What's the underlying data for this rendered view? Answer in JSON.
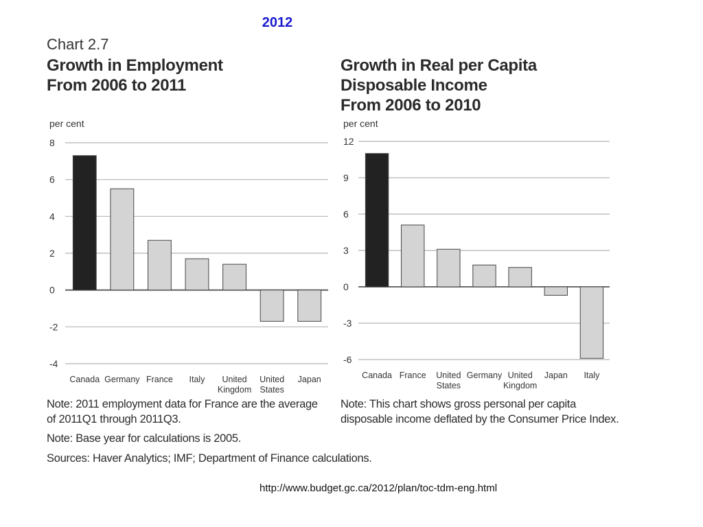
{
  "header": {
    "year": "2012",
    "chart_label": "Chart 2.7"
  },
  "chart_data": [
    {
      "type": "bar",
      "title_lines": [
        "Growth in Employment",
        "From 2006 to 2011"
      ],
      "ylabel": "per cent",
      "ylim": [
        -4,
        8
      ],
      "yticks": [
        8,
        6,
        4,
        2,
        0,
        -2,
        -4
      ],
      "categories": [
        "Canada",
        "Germany",
        "France",
        "Italy",
        "United Kingdom",
        "United States",
        "Japan"
      ],
      "category_lines": [
        [
          "Canada"
        ],
        [
          "Germany"
        ],
        [
          "France"
        ],
        [
          "Italy"
        ],
        [
          "United",
          "Kingdom"
        ],
        [
          "United",
          "States"
        ],
        [
          "Japan"
        ]
      ],
      "values": [
        7.3,
        5.5,
        2.7,
        1.7,
        1.4,
        -1.7,
        -1.7
      ],
      "grid": true,
      "highlight_color": "#222222",
      "bar_color": "#d4d4d4"
    },
    {
      "type": "bar",
      "title_lines": [
        "Growth in Real per Capita",
        "Disposable Income",
        "From 2006 to 2010"
      ],
      "ylabel": "per cent",
      "ylim": [
        -6,
        12
      ],
      "yticks": [
        12,
        9,
        6,
        3,
        0,
        -3,
        -6
      ],
      "categories": [
        "Canada",
        "France",
        "United States",
        "Germany",
        "United Kingdom",
        "Japan",
        "Italy"
      ],
      "category_lines": [
        [
          "Canada"
        ],
        [
          "France"
        ],
        [
          "United",
          "States"
        ],
        [
          "Germany"
        ],
        [
          "United",
          "Kingdom"
        ],
        [
          "Japan"
        ],
        [
          "Italy"
        ]
      ],
      "values": [
        11.0,
        5.1,
        3.1,
        1.8,
        1.6,
        -0.7,
        -5.9
      ],
      "grid": true,
      "highlight_color": "#222222",
      "bar_color": "#d4d4d4"
    }
  ],
  "notes": {
    "left_1": "Note: 2011 employment data for France are the average",
    "left_2": "of 2011Q1 through 2011Q3.",
    "left_3": "Note: Base year for calculations is 2005.",
    "left_4": "Sources: Haver Analytics; IMF; Department of Finance calculations.",
    "right_1": "Note: This chart shows gross personal per capita",
    "right_2": "disposable income deflated by the Consumer Price Index."
  },
  "footer": {
    "url": "http://www.budget.gc.ca/2012/plan/toc-tdm-eng.html"
  }
}
